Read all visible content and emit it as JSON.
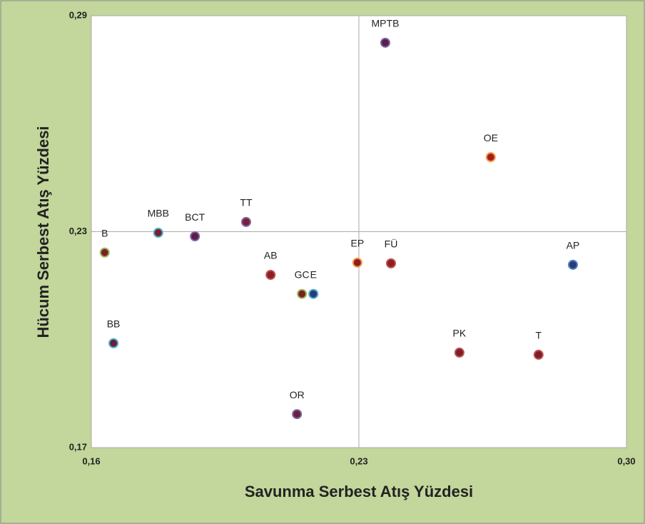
{
  "chart_data": {
    "type": "scatter",
    "x_label": "Savunma Serbest Atış Yüzdesi",
    "y_label": "Hücum Serbest Atış Yüzdesi",
    "labels": [
      "B",
      "MBB",
      "BCT",
      "TT",
      "AB",
      "GC",
      "E",
      "OR",
      "EP",
      "FÜ",
      "MPTB",
      "OE",
      "AP",
      "PK",
      "T",
      "BB"
    ],
    "x": [
      0.1635,
      0.1775,
      0.1871,
      0.2005,
      0.2069,
      0.2151,
      0.2181,
      0.2138,
      0.2296,
      0.2384,
      0.2369,
      0.2645,
      0.286,
      0.2563,
      0.277,
      0.1658
    ],
    "values": [
      0.2242,
      0.2297,
      0.2287,
      0.2327,
      0.218,
      0.2127,
      0.2127,
      0.1793,
      0.2214,
      0.2212,
      0.2825,
      0.2507,
      0.2208,
      0.1964,
      0.1958,
      0.199
    ],
    "colors": [
      "#7a1f2b",
      "#7a1f2b",
      "#5a1f4a",
      "#7a1f3a",
      "#8b1f24",
      "#7a1f2b",
      "#2a3a7a",
      "#6a1f3a",
      "#8b1f24",
      "#8b1f24",
      "#5a1f4a",
      "#a0201f",
      "#2a3a7a",
      "#7a1f2b",
      "#7a1f2b",
      "#6a1f3a"
    ],
    "edgecolors": [
      "#9bbb59",
      "#4bacc6",
      "#8064a2",
      "#8064a2",
      "#c0504d",
      "#9bbb59",
      "#4bacc6",
      "#8064a2",
      "#f79646",
      "#c0504d",
      "#8064a2",
      "#f79646",
      "#4f81bd",
      "#c0504d",
      "#c0504d",
      "#4bacc6"
    ],
    "xlim": [
      0.16,
      0.3
    ],
    "ylim": [
      0.17,
      0.29
    ],
    "xticks": [
      {
        "value": 0.16,
        "label": "0,16"
      },
      {
        "value": 0.23,
        "label": "0,23"
      },
      {
        "value": 0.3,
        "label": "0,30"
      }
    ],
    "yticks": [
      {
        "value": 0.17,
        "label": "0,17"
      },
      {
        "value": 0.23,
        "label": "0,23"
      },
      {
        "value": 0.29,
        "label": "0,29"
      }
    ],
    "grid": true
  }
}
